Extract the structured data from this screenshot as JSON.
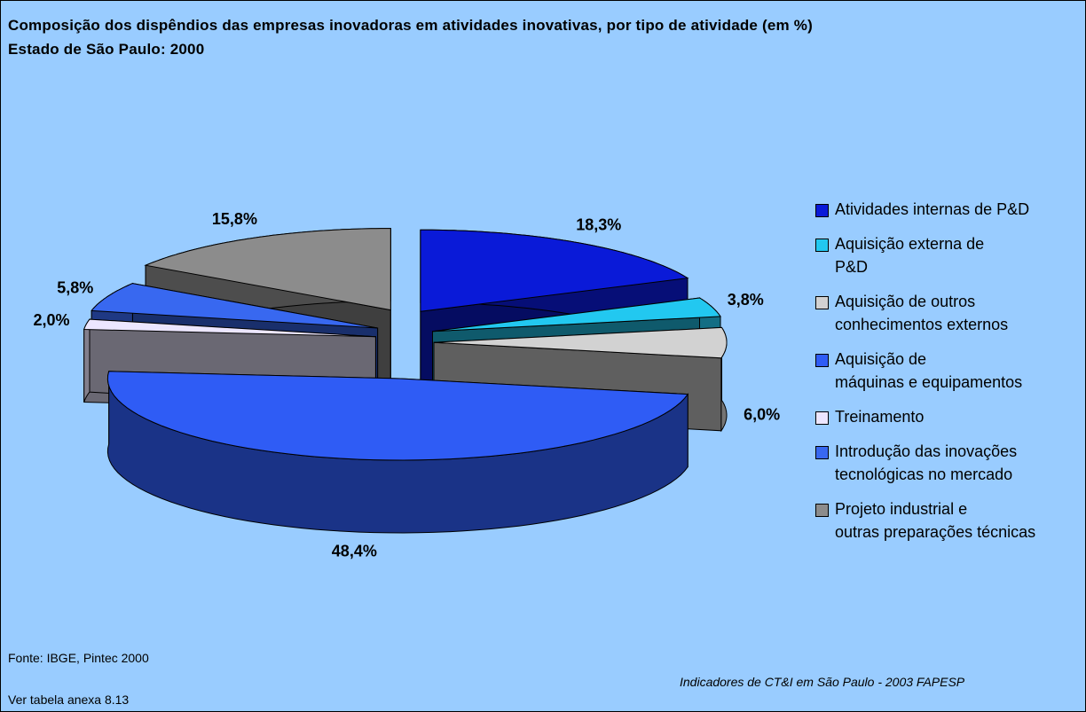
{
  "chart_data": {
    "type": "pie3d",
    "title": "Composição dos dispêndios das empresas inovadoras em atividades inovativas, por tipo de atividade (em %)",
    "subtitle": "Estado de São Paulo: 2000",
    "categories": [
      "Atividades internas de P&D",
      "Aquisição externa de\nP&D",
      "Aquisição de outros\nconhecimentos externos",
      "Aquisição de\nmáquinas e equipamentos",
      "Treinamento",
      "Introdução das inovações\ntecnológicas no mercado",
      "Projeto industrial e\noutras preparações técnicas"
    ],
    "values": [
      18.3,
      3.8,
      6.0,
      48.4,
      2.0,
      5.8,
      15.8
    ],
    "value_labels": [
      "18,3%",
      "3,8%",
      "6,0%",
      "48,4%",
      "2,0%",
      "5,8%",
      "15,8%"
    ],
    "colors": [
      "#0a1ad8",
      "#22c8f0",
      "#d2d2d2",
      "#2f5cf5",
      "#ece6ff",
      "#3868f0",
      "#8c8c8c"
    ],
    "source": "Fonte: IBGE, Pintec 2000",
    "note": "Ver tabela anexa 8.13",
    "credit": "Indicadores de CT&I em São Paulo - 2003 FAPESP"
  }
}
